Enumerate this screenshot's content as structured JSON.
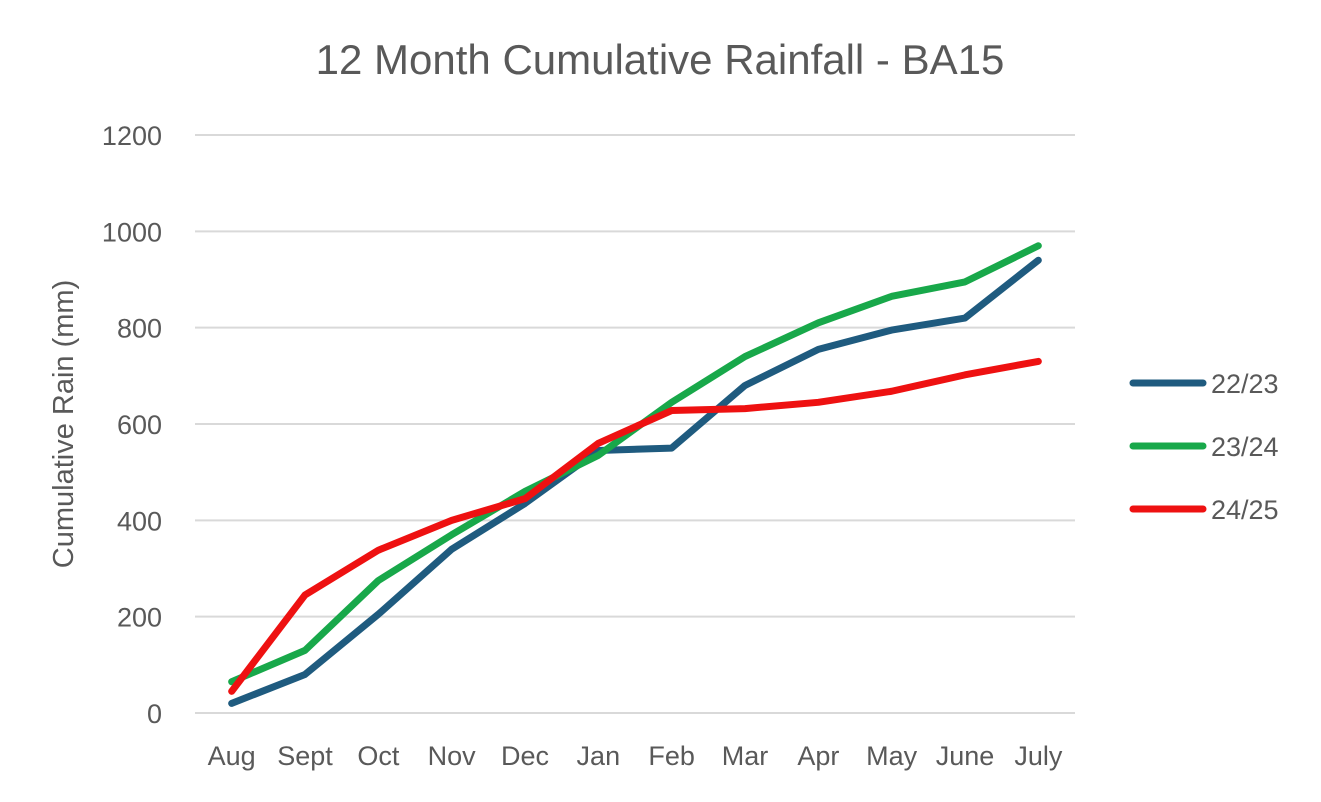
{
  "chart_data": {
    "type": "line",
    "title": "12 Month Cumulative Rainfall - BA15",
    "xlabel": "",
    "ylabel": "Cumulative Rain (mm)",
    "ylim": [
      0,
      1200
    ],
    "yticks": [
      0,
      200,
      400,
      600,
      800,
      1000,
      1200
    ],
    "grid": true,
    "legend_position": "right",
    "categories": [
      "Aug",
      "Sept",
      "Oct",
      "Nov",
      "Dec",
      "Jan",
      "Feb",
      "Mar",
      "Apr",
      "May",
      "June",
      "July"
    ],
    "series": [
      {
        "name": "22/23",
        "color": "#1f5b7f",
        "values": [
          20,
          80,
          205,
          340,
          435,
          545,
          550,
          680,
          755,
          795,
          820,
          940
        ]
      },
      {
        "name": "23/24",
        "color": "#18a84a",
        "values": [
          65,
          130,
          275,
          370,
          460,
          535,
          645,
          740,
          810,
          865,
          895,
          970
        ]
      },
      {
        "name": "24/25",
        "color": "#ee1111",
        "values": [
          45,
          245,
          338,
          400,
          445,
          560,
          628,
          632,
          645,
          668,
          702,
          730
        ]
      }
    ]
  }
}
